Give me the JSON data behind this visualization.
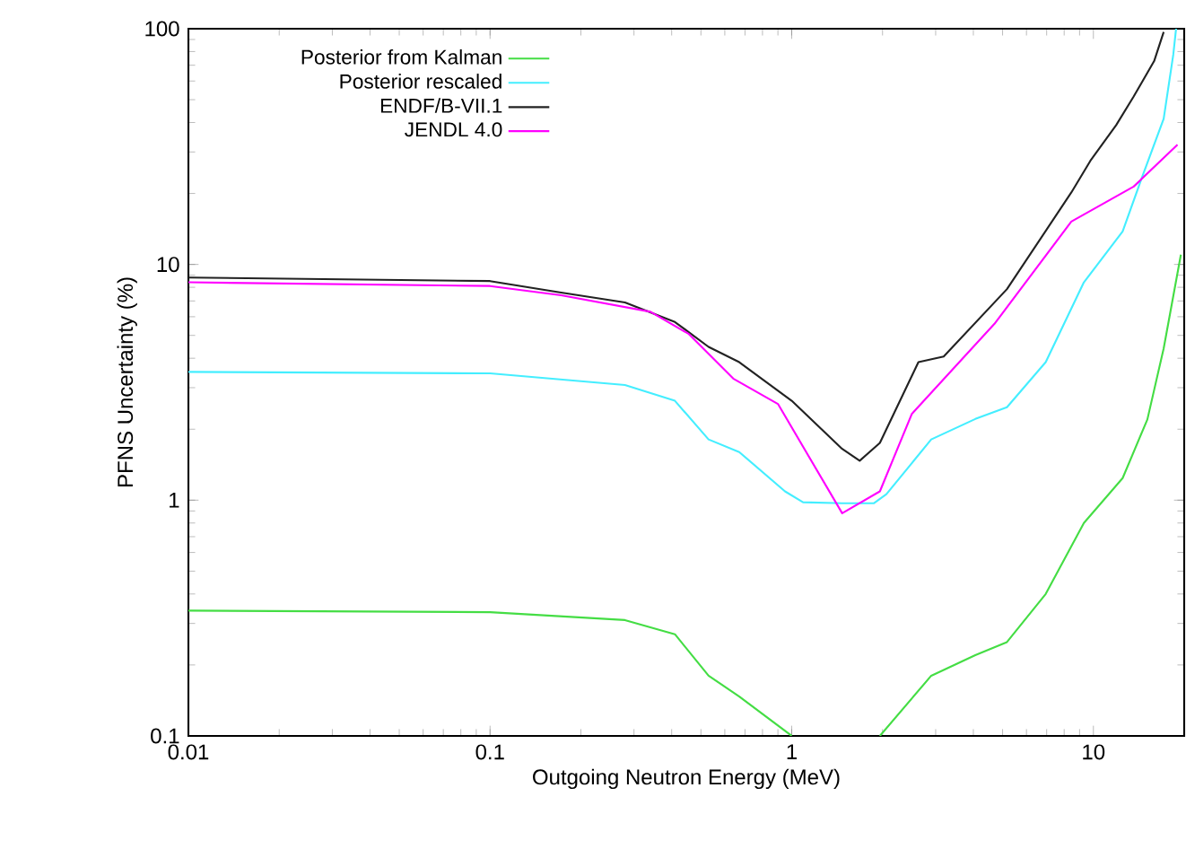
{
  "chart_data": {
    "type": "line",
    "xlabel": "Outgoing Neutron Energy (MeV)",
    "ylabel": "PFNS Uncertainty (%)",
    "log": "xy",
    "xlim": [
      0.01,
      20
    ],
    "ylim": [
      0.1,
      100
    ],
    "xticks": [
      0.01,
      0.1,
      1,
      10
    ],
    "yticks": [
      0.1,
      1,
      10,
      100
    ],
    "legend": "top left",
    "marker": "none",
    "line_style": "solid",
    "series": [
      {
        "name": "Posterior from Kalman",
        "color": "#44dd44",
        "x": [
          0.01,
          0.1,
          0.28,
          0.41,
          0.53,
          0.67,
          1.0,
          1.5,
          1.96,
          2.9,
          4.06,
          5.17,
          6.95,
          9.3,
          12.5,
          15.1,
          17.1,
          19.5
        ],
        "values": [
          0.34,
          0.335,
          0.31,
          0.27,
          0.18,
          0.147,
          0.1,
          null,
          0.1,
          0.18,
          0.22,
          0.25,
          0.4,
          0.8,
          1.24,
          2.2,
          4.4,
          11
        ]
      },
      {
        "name": "Posterior rescaled",
        "color": "#44eeff",
        "x": [
          0.01,
          0.1,
          0.28,
          0.41,
          0.53,
          0.67,
          0.95,
          1.09,
          1.47,
          1.87,
          2.06,
          2.9,
          4.06,
          5.17,
          6.95,
          9.3,
          12.5,
          14.4,
          17.1,
          18.4,
          18.8
        ],
        "values": [
          3.5,
          3.45,
          3.08,
          2.64,
          1.81,
          1.6,
          1.09,
          0.98,
          0.97,
          0.97,
          1.06,
          1.81,
          2.21,
          2.48,
          3.85,
          8.4,
          13.8,
          22.9,
          41.5,
          77.6,
          100
        ]
      },
      {
        "name": "ENDF/B-VII.1",
        "color": "#222222",
        "x": [
          0.01,
          0.1,
          0.172,
          0.28,
          0.41,
          0.53,
          0.67,
          1.0,
          1.47,
          1.68,
          1.96,
          2.63,
          3.19,
          5.17,
          8.45,
          9.77,
          11.9,
          13.6,
          15.9,
          17.1
        ],
        "values": [
          8.8,
          8.5,
          7.6,
          6.9,
          5.7,
          4.47,
          3.85,
          2.64,
          1.65,
          1.47,
          1.75,
          3.85,
          4.07,
          7.86,
          20.2,
          27.5,
          39,
          51.6,
          72.9,
          96.8
        ]
      },
      {
        "name": "JENDL 4.0",
        "color": "#ff00ff",
        "x": [
          0.01,
          0.1,
          0.172,
          0.34,
          0.456,
          0.64,
          0.9,
          1.47,
          1.96,
          2.5,
          4.7,
          8.45,
          13.6,
          19
        ],
        "values": [
          8.4,
          8.1,
          7.4,
          6.3,
          5.07,
          3.28,
          2.56,
          0.88,
          1.09,
          2.32,
          5.6,
          15.2,
          21.4,
          32.2
        ]
      }
    ]
  }
}
